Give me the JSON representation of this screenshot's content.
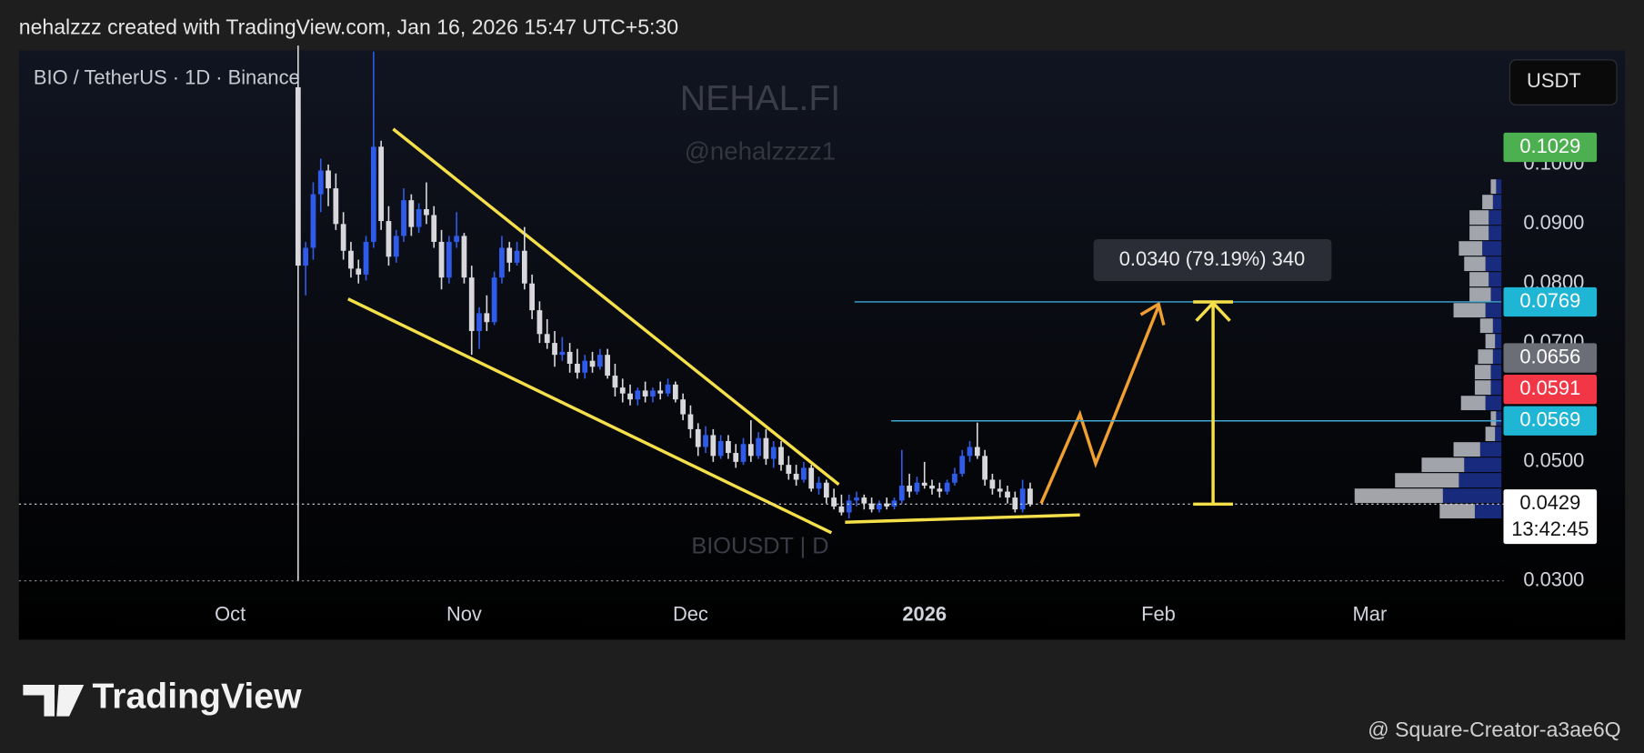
{
  "header": "nehalzzz created with TradingView.com, Jan 16, 2026 15:47 UTC+5:30",
  "chart_data": {
    "type": "candlestick",
    "title": "BIO / TetherUS · 1D · Binance",
    "currency": "USDT",
    "watermark": [
      "NEHAL.FI",
      "@nehalzzzz1",
      "BIOUSDT | D"
    ],
    "series": [
      {
        "name": "BIOUSDT",
        "up_color": "#2f5bea",
        "down_color": "#d8d8dc",
        "values": [
          [
            0.113,
            0.12,
            0.03,
            0.083
          ],
          [
            0.083,
            0.087,
            0.078,
            0.086
          ],
          [
            0.086,
            0.097,
            0.084,
            0.095
          ],
          [
            0.095,
            0.101,
            0.092,
            0.099
          ],
          [
            0.099,
            0.1,
            0.093,
            0.096
          ],
          [
            0.096,
            0.0985,
            0.089,
            0.09
          ],
          [
            0.09,
            0.092,
            0.084,
            0.0855
          ],
          [
            0.0855,
            0.087,
            0.081,
            0.0825
          ],
          [
            0.0825,
            0.084,
            0.08,
            0.0815
          ],
          [
            0.0815,
            0.088,
            0.0805,
            0.087
          ],
          [
            0.087,
            0.119,
            0.086,
            0.103
          ],
          [
            0.103,
            0.104,
            0.089,
            0.0905
          ],
          [
            0.0905,
            0.093,
            0.083,
            0.0845
          ],
          [
            0.0845,
            0.089,
            0.0835,
            0.088
          ],
          [
            0.088,
            0.096,
            0.087,
            0.094
          ],
          [
            0.094,
            0.095,
            0.088,
            0.0895
          ],
          [
            0.0895,
            0.0935,
            0.0885,
            0.0925
          ],
          [
            0.0925,
            0.097,
            0.09,
            0.0915
          ],
          [
            0.0915,
            0.093,
            0.086,
            0.087
          ],
          [
            0.087,
            0.089,
            0.079,
            0.081
          ],
          [
            0.081,
            0.088,
            0.08,
            0.087
          ],
          [
            0.087,
            0.092,
            0.086,
            0.088
          ],
          [
            0.088,
            0.0885,
            0.08,
            0.081
          ],
          [
            0.081,
            0.083,
            0.068,
            0.072
          ],
          [
            0.072,
            0.076,
            0.069,
            0.075
          ],
          [
            0.075,
            0.078,
            0.072,
            0.0735
          ],
          [
            0.0735,
            0.082,
            0.073,
            0.081
          ],
          [
            0.081,
            0.088,
            0.08,
            0.086
          ],
          [
            0.086,
            0.087,
            0.082,
            0.0835
          ],
          [
            0.0835,
            0.087,
            0.083,
            0.0855
          ],
          [
            0.0855,
            0.0895,
            0.079,
            0.08
          ],
          [
            0.08,
            0.0815,
            0.074,
            0.0755
          ],
          [
            0.0755,
            0.077,
            0.07,
            0.0715
          ],
          [
            0.0715,
            0.074,
            0.069,
            0.07
          ],
          [
            0.07,
            0.072,
            0.066,
            0.068
          ],
          [
            0.068,
            0.071,
            0.067,
            0.0685
          ],
          [
            0.0685,
            0.07,
            0.065,
            0.0665
          ],
          [
            0.0665,
            0.069,
            0.064,
            0.065
          ],
          [
            0.065,
            0.068,
            0.064,
            0.067
          ],
          [
            0.067,
            0.0685,
            0.065,
            0.066
          ],
          [
            0.066,
            0.069,
            0.0655,
            0.068
          ],
          [
            0.068,
            0.069,
            0.064,
            0.0645
          ],
          [
            0.0645,
            0.0665,
            0.061,
            0.0625
          ],
          [
            0.0625,
            0.064,
            0.06,
            0.0615
          ],
          [
            0.0615,
            0.063,
            0.0595,
            0.0605
          ],
          [
            0.0605,
            0.0625,
            0.0595,
            0.062
          ],
          [
            0.062,
            0.0635,
            0.06,
            0.061
          ],
          [
            0.061,
            0.0625,
            0.06,
            0.062
          ],
          [
            0.062,
            0.0635,
            0.0605,
            0.0615
          ],
          [
            0.0615,
            0.064,
            0.061,
            0.063
          ],
          [
            0.063,
            0.0635,
            0.06,
            0.0605
          ],
          [
            0.0605,
            0.0615,
            0.057,
            0.058
          ],
          [
            0.058,
            0.0595,
            0.054,
            0.0555
          ],
          [
            0.0555,
            0.0565,
            0.051,
            0.0525
          ],
          [
            0.0525,
            0.056,
            0.0515,
            0.0545
          ],
          [
            0.0545,
            0.0555,
            0.05,
            0.051
          ],
          [
            0.051,
            0.0545,
            0.0505,
            0.0535
          ],
          [
            0.0535,
            0.0545,
            0.0505,
            0.0515
          ],
          [
            0.0515,
            0.053,
            0.049,
            0.05
          ],
          [
            0.05,
            0.054,
            0.0495,
            0.053
          ],
          [
            0.053,
            0.057,
            0.05,
            0.051
          ],
          [
            0.051,
            0.055,
            0.0505,
            0.054
          ],
          [
            0.054,
            0.0555,
            0.0495,
            0.0505
          ],
          [
            0.0505,
            0.0535,
            0.049,
            0.0525
          ],
          [
            0.0525,
            0.0535,
            0.0485,
            0.0495
          ],
          [
            0.0495,
            0.051,
            0.047,
            0.048
          ],
          [
            0.048,
            0.0495,
            0.046,
            0.047
          ],
          [
            0.047,
            0.05,
            0.0465,
            0.049
          ],
          [
            0.049,
            0.0495,
            0.045,
            0.0455
          ],
          [
            0.0455,
            0.0475,
            0.0445,
            0.0465
          ],
          [
            0.0465,
            0.047,
            0.043,
            0.044
          ],
          [
            0.044,
            0.0455,
            0.042,
            0.0425
          ],
          [
            0.0425,
            0.0445,
            0.041,
            0.0415
          ],
          [
            0.0415,
            0.0445,
            0.0405,
            0.0435
          ],
          [
            0.0435,
            0.045,
            0.0425,
            0.044
          ],
          [
            0.044,
            0.0445,
            0.042,
            0.043
          ],
          [
            0.043,
            0.044,
            0.0415,
            0.042
          ],
          [
            0.042,
            0.0435,
            0.0415,
            0.043
          ],
          [
            0.043,
            0.044,
            0.042,
            0.0425
          ],
          [
            0.0425,
            0.044,
            0.042,
            0.0435
          ],
          [
            0.0435,
            0.052,
            0.043,
            0.046
          ],
          [
            0.046,
            0.048,
            0.044,
            0.045
          ],
          [
            0.045,
            0.0475,
            0.0445,
            0.0465
          ],
          [
            0.0465,
            0.05,
            0.0455,
            0.046
          ],
          [
            0.046,
            0.047,
            0.0445,
            0.0455
          ],
          [
            0.0455,
            0.0465,
            0.044,
            0.045
          ],
          [
            0.045,
            0.047,
            0.0445,
            0.0465
          ],
          [
            0.0465,
            0.049,
            0.046,
            0.048
          ],
          [
            0.048,
            0.052,
            0.0475,
            0.051
          ],
          [
            0.051,
            0.0535,
            0.05,
            0.0525
          ],
          [
            0.0525,
            0.0566,
            0.0505,
            0.051
          ],
          [
            0.051,
            0.052,
            0.046,
            0.047
          ],
          [
            0.047,
            0.048,
            0.0445,
            0.0455
          ],
          [
            0.0455,
            0.047,
            0.044,
            0.045
          ],
          [
            0.045,
            0.046,
            0.043,
            0.044
          ],
          [
            0.044,
            0.045,
            0.0415,
            0.042
          ],
          [
            0.042,
            0.047,
            0.0415,
            0.0455
          ],
          [
            0.0455,
            0.0465,
            0.0425,
            0.0429
          ]
        ]
      }
    ],
    "xlim": [
      -37,
      160
    ],
    "xticks": [
      {
        "value": -9,
        "label": "Oct"
      },
      {
        "value": 22,
        "label": "Nov"
      },
      {
        "value": 52,
        "label": "Dec"
      },
      {
        "value": 83,
        "label": "2026"
      },
      {
        "value": 114,
        "label": "Feb"
      },
      {
        "value": 142,
        "label": "Mar"
      }
    ],
    "ylim": [
      0.0275,
      0.1192
    ],
    "yticks": [
      {
        "value": 0.03,
        "label": "0.0300"
      },
      {
        "value": 0.05,
        "label": "0.0500"
      },
      {
        "value": 0.07,
        "label": "0.0700"
      },
      {
        "value": 0.08,
        "label": "0.0800"
      },
      {
        "value": 0.09,
        "label": "0.0900"
      },
      {
        "value": 0.1,
        "label": "0.1000"
      }
    ],
    "grid": false,
    "levels": {
      "color": "#3fa9d6",
      "values": [
        0.0769,
        0.0569
      ]
    },
    "price_labels": [
      {
        "value": 0.1029,
        "color": "#4caf50"
      },
      {
        "value": 0.0769,
        "color": "#1fb5d4"
      },
      {
        "value": 0.0656,
        "color": "#6b6e76"
      },
      {
        "value": 0.0591,
        "color": "#f23645"
      },
      {
        "value": 0.0569,
        "color": "#1fb5d4"
      },
      {
        "value": 0.0429,
        "color": "#ffffff",
        "countdown": "13:42:45"
      }
    ],
    "measure": {
      "label": "0.0340 (79.19%) 340",
      "from": 0.0429,
      "to": 0.0769
    },
    "volume_profile": {
      "up_color": "#1a2f8a",
      "down_color": "#b4b6bc",
      "prices": [
        0.0963,
        0.0937,
        0.0911,
        0.0885,
        0.0859,
        0.0833,
        0.0807,
        0.0781,
        0.0755,
        0.0729,
        0.0703,
        0.0677,
        0.0651,
        0.0625,
        0.0599,
        0.0573,
        0.0547,
        0.0521,
        0.0495,
        0.0469,
        0.0443,
        0.0417
      ],
      "up": [
        5,
        8,
        12,
        12,
        18,
        15,
        12,
        10,
        15,
        8,
        6,
        8,
        10,
        10,
        15,
        5,
        6,
        20,
        35,
        40,
        55,
        25
      ],
      "down": [
        5,
        10,
        18,
        18,
        22,
        20,
        18,
        20,
        30,
        12,
        9,
        14,
        15,
        15,
        23,
        5,
        9,
        25,
        40,
        60,
        83,
        33
      ]
    }
  },
  "footer": {
    "logo": "TradingView",
    "credit": "@ Square-Creator-a3ae6Q"
  }
}
